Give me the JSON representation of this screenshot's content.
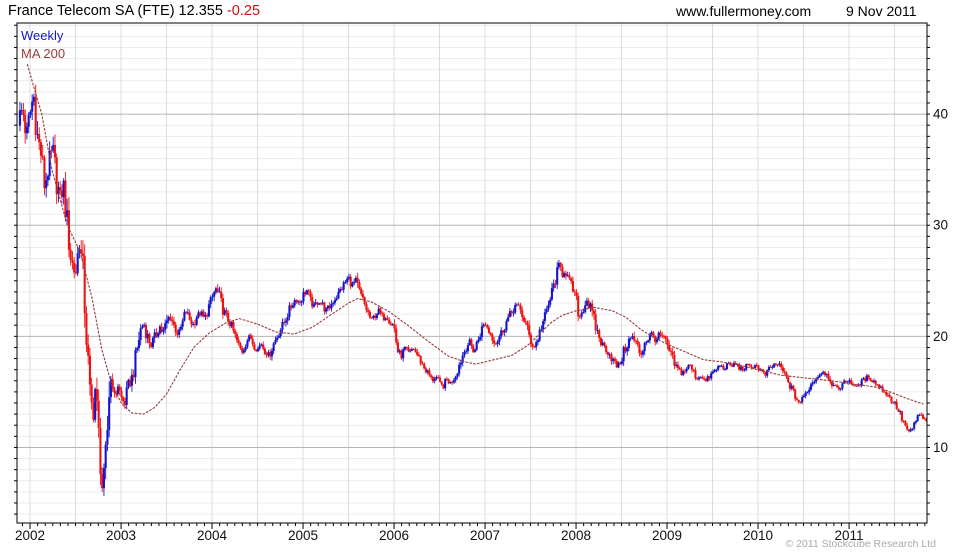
{
  "header": {
    "title": "France Telecom SA (FTE) 12.355",
    "change": "-0.25",
    "website": "www.fullermoney.com",
    "date": "9 Nov 2011"
  },
  "legend": {
    "frequency_label": "Weekly",
    "ma_label": "MA 200"
  },
  "footer": {
    "copyright": "© 2011 Stockcube Research Ltd"
  },
  "chart_data": {
    "type": "candlestick",
    "frequency": "weekly",
    "instrument": "France Telecom SA (FTE)",
    "last_price": 12.355,
    "change": -0.25,
    "legend_position": "top-left",
    "grid": true,
    "x_axis": {
      "start": 2001.857,
      "end": 2011.857,
      "year_labels": [
        "2002",
        "2003",
        "2004",
        "2005",
        "2006",
        "2007",
        "2008",
        "2009",
        "2010",
        "2011"
      ],
      "gridline_step_years": 0.5,
      "tick_step_months": 1
    },
    "y_axis": {
      "side": "right",
      "tick_labels": [
        40,
        30,
        20,
        10
      ],
      "minor_step": 1,
      "top_price": 48.2,
      "bottom_price": 3.2
    },
    "colors": {
      "up": "#1414cc",
      "down": "#ee1111",
      "ma": "#993b3b",
      "grid_minor_h": "#ececec",
      "grid_major_h": "#b5b5b5",
      "grid_v": "#dcdcdc",
      "frame": "#000000",
      "axis_text": "#111111"
    },
    "price_anchors": [
      [
        2001.87,
        39.5
      ],
      [
        2001.92,
        40.5
      ],
      [
        2001.96,
        38.0
      ],
      [
        2002.0,
        40.0
      ],
      [
        2002.04,
        41.8
      ],
      [
        2002.08,
        38.0
      ],
      [
        2002.12,
        36.5
      ],
      [
        2002.16,
        33.5
      ],
      [
        2002.21,
        35.5
      ],
      [
        2002.25,
        36.8
      ],
      [
        2002.29,
        34.0
      ],
      [
        2002.33,
        32.5
      ],
      [
        2002.37,
        33.5
      ],
      [
        2002.41,
        30.0
      ],
      [
        2002.45,
        27.0
      ],
      [
        2002.5,
        25.5
      ],
      [
        2002.54,
        28.5
      ],
      [
        2002.58,
        26.0
      ],
      [
        2002.62,
        20.0
      ],
      [
        2002.66,
        14.5
      ],
      [
        2002.7,
        13.0
      ],
      [
        2002.72,
        15.8
      ],
      [
        2002.74,
        12.5
      ],
      [
        2002.77,
        9.5
      ],
      [
        2002.79,
        6.3
      ],
      [
        2002.82,
        7.5
      ],
      [
        2002.85,
        11.5
      ],
      [
        2002.87,
        15.0
      ],
      [
        2002.9,
        16.8
      ],
      [
        2002.93,
        14.2
      ],
      [
        2002.96,
        15.8
      ],
      [
        2003.0,
        14.5
      ],
      [
        2003.04,
        13.9
      ],
      [
        2003.08,
        15.5
      ],
      [
        2003.13,
        16.5
      ],
      [
        2003.17,
        18.5
      ],
      [
        2003.21,
        20.5
      ],
      [
        2003.25,
        21.2
      ],
      [
        2003.29,
        20.0
      ],
      [
        2003.33,
        19.2
      ],
      [
        2003.38,
        20.0
      ],
      [
        2003.42,
        21.0
      ],
      [
        2003.46,
        20.3
      ],
      [
        2003.5,
        21.2
      ],
      [
        2003.54,
        21.9
      ],
      [
        2003.58,
        21.0
      ],
      [
        2003.63,
        20.1
      ],
      [
        2003.67,
        21.0
      ],
      [
        2003.71,
        22.3
      ],
      [
        2003.75,
        21.6
      ],
      [
        2003.79,
        21.0
      ],
      [
        2003.83,
        21.8
      ],
      [
        2003.88,
        22.1
      ],
      [
        2003.92,
        21.5
      ],
      [
        2003.96,
        22.6
      ],
      [
        2004.0,
        23.4
      ],
      [
        2004.04,
        24.3
      ],
      [
        2004.08,
        23.6
      ],
      [
        2004.12,
        22.4
      ],
      [
        2004.17,
        21.6
      ],
      [
        2004.21,
        21.0
      ],
      [
        2004.25,
        20.1
      ],
      [
        2004.29,
        19.2
      ],
      [
        2004.33,
        18.6
      ],
      [
        2004.38,
        19.6
      ],
      [
        2004.42,
        20.0
      ],
      [
        2004.46,
        19.2
      ],
      [
        2004.5,
        18.8
      ],
      [
        2004.54,
        19.4
      ],
      [
        2004.58,
        18.7
      ],
      [
        2004.63,
        18.3
      ],
      [
        2004.67,
        19.2
      ],
      [
        2004.71,
        19.9
      ],
      [
        2004.75,
        20.6
      ],
      [
        2004.79,
        21.2
      ],
      [
        2004.83,
        22.0
      ],
      [
        2004.88,
        22.9
      ],
      [
        2004.92,
        23.4
      ],
      [
        2004.96,
        23.0
      ],
      [
        2005.0,
        23.7
      ],
      [
        2005.04,
        24.2
      ],
      [
        2005.08,
        23.2
      ],
      [
        2005.12,
        22.7
      ],
      [
        2005.17,
        23.2
      ],
      [
        2005.21,
        22.9
      ],
      [
        2005.25,
        22.3
      ],
      [
        2005.29,
        22.6
      ],
      [
        2005.33,
        23.2
      ],
      [
        2005.38,
        23.7
      ],
      [
        2005.42,
        24.3
      ],
      [
        2005.46,
        24.8
      ],
      [
        2005.5,
        25.3
      ],
      [
        2005.54,
        24.6
      ],
      [
        2005.58,
        25.0
      ],
      [
        2005.62,
        24.0
      ],
      [
        2005.67,
        23.0
      ],
      [
        2005.71,
        22.2
      ],
      [
        2005.75,
        21.4
      ],
      [
        2005.79,
        21.9
      ],
      [
        2005.83,
        22.3
      ],
      [
        2005.88,
        21.6
      ],
      [
        2005.92,
        21.9
      ],
      [
        2005.96,
        21.3
      ],
      [
        2006.0,
        20.9
      ],
      [
        2006.04,
        18.7
      ],
      [
        2006.08,
        18.2
      ],
      [
        2006.12,
        18.9
      ],
      [
        2006.17,
        18.4
      ],
      [
        2006.21,
        19.0
      ],
      [
        2006.25,
        18.4
      ],
      [
        2006.29,
        17.8
      ],
      [
        2006.33,
        17.2
      ],
      [
        2006.38,
        16.6
      ],
      [
        2006.42,
        16.0
      ],
      [
        2006.46,
        16.4
      ],
      [
        2006.5,
        15.7
      ],
      [
        2006.54,
        15.5
      ],
      [
        2006.58,
        16.1
      ],
      [
        2006.62,
        15.8
      ],
      [
        2006.67,
        16.4
      ],
      [
        2006.71,
        17.3
      ],
      [
        2006.75,
        18.2
      ],
      [
        2006.79,
        19.0
      ],
      [
        2006.83,
        19.5
      ],
      [
        2006.88,
        18.6
      ],
      [
        2006.92,
        19.6
      ],
      [
        2006.96,
        20.6
      ],
      [
        2007.0,
        21.2
      ],
      [
        2007.04,
        20.5
      ],
      [
        2007.08,
        19.9
      ],
      [
        2007.12,
        19.4
      ],
      [
        2007.17,
        20.2
      ],
      [
        2007.21,
        20.8
      ],
      [
        2007.25,
        21.6
      ],
      [
        2007.29,
        22.1
      ],
      [
        2007.33,
        22.8
      ],
      [
        2007.38,
        22.5
      ],
      [
        2007.42,
        21.7
      ],
      [
        2007.46,
        20.8
      ],
      [
        2007.5,
        19.6
      ],
      [
        2007.54,
        19.0
      ],
      [
        2007.58,
        19.8
      ],
      [
        2007.62,
        20.9
      ],
      [
        2007.67,
        22.0
      ],
      [
        2007.71,
        23.2
      ],
      [
        2007.75,
        24.4
      ],
      [
        2007.79,
        25.6
      ],
      [
        2007.82,
        26.5
      ],
      [
        2007.85,
        25.6
      ],
      [
        2007.88,
        26.0
      ],
      [
        2007.92,
        25.0
      ],
      [
        2007.96,
        24.4
      ],
      [
        2008.0,
        23.2
      ],
      [
        2008.04,
        21.7
      ],
      [
        2008.08,
        22.6
      ],
      [
        2008.12,
        23.3
      ],
      [
        2008.17,
        22.2
      ],
      [
        2008.21,
        21.0
      ],
      [
        2008.25,
        20.0
      ],
      [
        2008.29,
        19.2
      ],
      [
        2008.33,
        18.9
      ],
      [
        2008.38,
        18.3
      ],
      [
        2008.42,
        17.6
      ],
      [
        2008.46,
        17.2
      ],
      [
        2008.5,
        18.0
      ],
      [
        2008.54,
        18.9
      ],
      [
        2008.58,
        19.6
      ],
      [
        2008.62,
        19.9
      ],
      [
        2008.67,
        19.2
      ],
      [
        2008.71,
        18.3
      ],
      [
        2008.75,
        19.4
      ],
      [
        2008.79,
        19.8
      ],
      [
        2008.83,
        20.2
      ],
      [
        2008.88,
        19.7
      ],
      [
        2008.92,
        20.1
      ],
      [
        2008.96,
        19.8
      ],
      [
        2009.0,
        19.2
      ],
      [
        2009.04,
        18.3
      ],
      [
        2009.08,
        17.5
      ],
      [
        2009.12,
        17.0
      ],
      [
        2009.17,
        16.7
      ],
      [
        2009.21,
        17.1
      ],
      [
        2009.25,
        17.4
      ],
      [
        2009.29,
        16.8
      ],
      [
        2009.33,
        16.2
      ],
      [
        2009.38,
        16.5
      ],
      [
        2009.42,
        15.9
      ],
      [
        2009.46,
        16.3
      ],
      [
        2009.5,
        16.7
      ],
      [
        2009.54,
        17.0
      ],
      [
        2009.58,
        17.4
      ],
      [
        2009.62,
        17.1
      ],
      [
        2009.67,
        17.5
      ],
      [
        2009.71,
        17.3
      ],
      [
        2009.75,
        17.6
      ],
      [
        2009.79,
        17.2
      ],
      [
        2009.83,
        17.0
      ],
      [
        2009.88,
        17.4
      ],
      [
        2009.92,
        17.1
      ],
      [
        2009.96,
        17.5
      ],
      [
        2010.0,
        17.2
      ],
      [
        2010.04,
        16.8
      ],
      [
        2010.08,
        16.5
      ],
      [
        2010.12,
        17.0
      ],
      [
        2010.17,
        17.4
      ],
      [
        2010.21,
        17.5
      ],
      [
        2010.25,
        17.2
      ],
      [
        2010.29,
        16.6
      ],
      [
        2010.33,
        15.9
      ],
      [
        2010.38,
        15.1
      ],
      [
        2010.42,
        14.4
      ],
      [
        2010.46,
        14.0
      ],
      [
        2010.5,
        14.5
      ],
      [
        2010.54,
        15.1
      ],
      [
        2010.58,
        15.6
      ],
      [
        2010.62,
        16.1
      ],
      [
        2010.67,
        16.5
      ],
      [
        2010.71,
        16.9
      ],
      [
        2010.75,
        16.6
      ],
      [
        2010.79,
        16.2
      ],
      [
        2010.83,
        15.5
      ],
      [
        2010.88,
        15.2
      ],
      [
        2010.92,
        15.7
      ],
      [
        2010.96,
        15.9
      ],
      [
        2011.0,
        16.1
      ],
      [
        2011.04,
        15.7
      ],
      [
        2011.08,
        15.4
      ],
      [
        2011.12,
        15.8
      ],
      [
        2011.17,
        16.1
      ],
      [
        2011.21,
        16.4
      ],
      [
        2011.25,
        16.1
      ],
      [
        2011.29,
        15.8
      ],
      [
        2011.33,
        15.5
      ],
      [
        2011.38,
        15.1
      ],
      [
        2011.42,
        14.8
      ],
      [
        2011.46,
        14.3
      ],
      [
        2011.5,
        14.0
      ],
      [
        2011.54,
        13.4
      ],
      [
        2011.58,
        12.6
      ],
      [
        2011.62,
        11.9
      ],
      [
        2011.66,
        11.3
      ],
      [
        2011.7,
        11.7
      ],
      [
        2011.73,
        12.4
      ],
      [
        2011.77,
        13.0
      ],
      [
        2011.8,
        12.7
      ],
      [
        2011.83,
        12.5
      ],
      [
        2011.86,
        12.355
      ]
    ],
    "ma_anchors": [
      [
        2001.97,
        44.5
      ],
      [
        2002.05,
        42.2
      ],
      [
        2002.13,
        40.0
      ],
      [
        2002.24,
        35.0
      ],
      [
        2002.41,
        30.0
      ],
      [
        2002.55,
        27.6
      ],
      [
        2002.68,
        23.5
      ],
      [
        2002.79,
        18.8
      ],
      [
        2002.9,
        15.6
      ],
      [
        2003.01,
        13.9
      ],
      [
        2003.12,
        13.1
      ],
      [
        2003.25,
        13.0
      ],
      [
        2003.37,
        13.6
      ],
      [
        2003.5,
        14.8
      ],
      [
        2003.65,
        17.0
      ],
      [
        2003.8,
        19.0
      ],
      [
        2003.97,
        20.3
      ],
      [
        2004.15,
        21.2
      ],
      [
        2004.3,
        21.6
      ],
      [
        2004.5,
        21.1
      ],
      [
        2004.7,
        20.4
      ],
      [
        2004.9,
        20.2
      ],
      [
        2005.1,
        20.8
      ],
      [
        2005.3,
        21.9
      ],
      [
        2005.5,
        23.0
      ],
      [
        2005.6,
        23.4
      ],
      [
        2005.75,
        23.1
      ],
      [
        2005.95,
        22.2
      ],
      [
        2006.15,
        21.0
      ],
      [
        2006.4,
        19.4
      ],
      [
        2006.6,
        18.2
      ],
      [
        2006.78,
        17.7
      ],
      [
        2006.9,
        17.5
      ],
      [
        2007.1,
        17.9
      ],
      [
        2007.3,
        18.3
      ],
      [
        2007.47,
        19.2
      ],
      [
        2007.6,
        20.2
      ],
      [
        2007.72,
        21.2
      ],
      [
        2007.85,
        21.9
      ],
      [
        2008.0,
        22.3
      ],
      [
        2008.2,
        22.6
      ],
      [
        2008.4,
        22.3
      ],
      [
        2008.55,
        21.7
      ],
      [
        2008.7,
        20.7
      ],
      [
        2008.85,
        19.9
      ],
      [
        2009.0,
        19.3
      ],
      [
        2009.2,
        18.6
      ],
      [
        2009.4,
        17.9
      ],
      [
        2009.6,
        17.7
      ],
      [
        2009.8,
        17.4
      ],
      [
        2010.0,
        17.0
      ],
      [
        2010.25,
        16.5
      ],
      [
        2010.46,
        16.3
      ],
      [
        2010.7,
        16.1
      ],
      [
        2010.9,
        15.9
      ],
      [
        2011.0,
        15.7
      ],
      [
        2011.15,
        15.6
      ],
      [
        2011.31,
        15.4
      ],
      [
        2011.45,
        15.0
      ],
      [
        2011.64,
        14.4
      ],
      [
        2011.76,
        14.05
      ],
      [
        2011.82,
        13.9
      ]
    ]
  }
}
